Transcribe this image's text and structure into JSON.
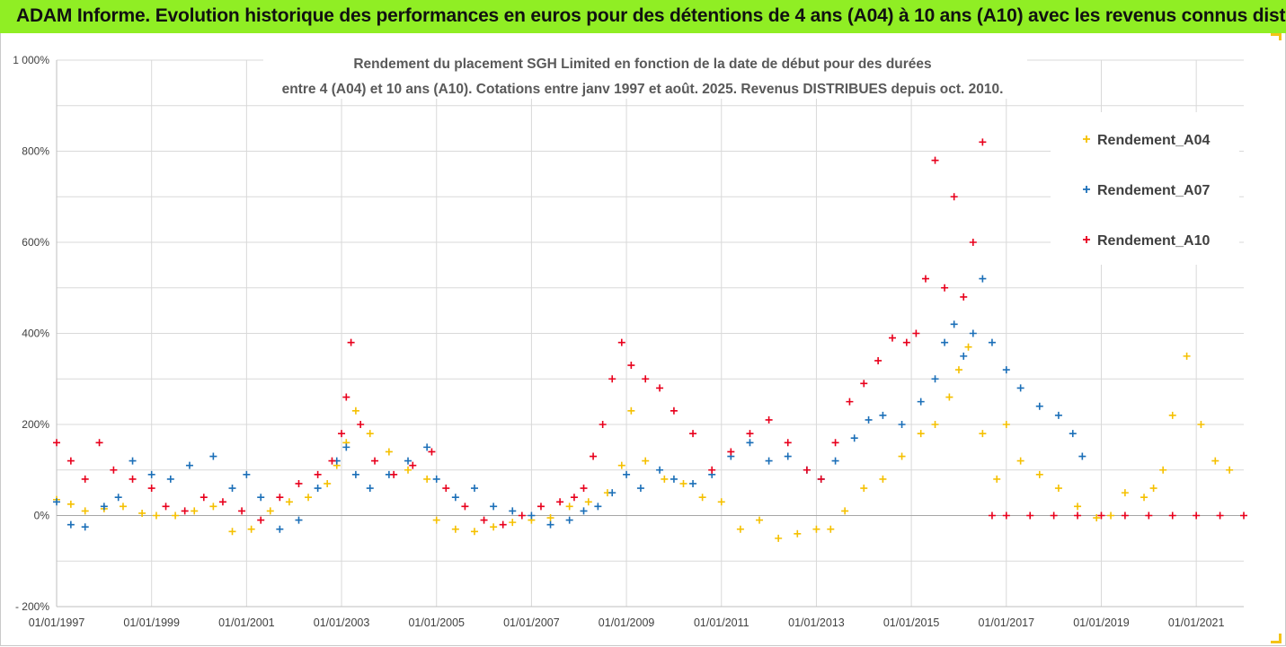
{
  "banner": {
    "title": "ADAM Informe. Evolution historique des performances en euros pour des détentions de 4 ans (A04) à 10 ans (A10) avec les revenus connus distribués"
  },
  "colors": {
    "banner": "#90ee24",
    "A04": "#f5c000",
    "A07": "#1b6fb8",
    "A10": "#e8001c",
    "grid": "#d9d9d9"
  },
  "chart_data": {
    "type": "scatter",
    "title_line1": "Rendement du placement SGH Limited en fonction de la date de début pour des durées",
    "title_line2": "entre 4 (A04) et 10 ans (A10). Cotations entre janv 1997 et août. 2025. Revenus DISTRIBUES depuis oct. 2010.",
    "y_ticks": [
      "1 000%",
      "800%",
      "600%",
      "400%",
      "200%",
      "0%",
      "- 200%"
    ],
    "y_tick_values": [
      1000,
      800,
      600,
      400,
      200,
      0,
      -200
    ],
    "x_ticks": [
      "01/01/1997",
      "01/01/1999",
      "01/01/2001",
      "01/01/2003",
      "01/01/2005",
      "01/01/2007",
      "01/01/2009",
      "01/01/2011",
      "01/01/2013",
      "01/01/2015",
      "01/01/2017",
      "01/01/2019",
      "01/01/2021"
    ],
    "x_tick_years": [
      1997,
      1999,
      2001,
      2003,
      2005,
      2007,
      2009,
      2011,
      2013,
      2015,
      2017,
      2019,
      2021
    ],
    "xlim": [
      1997.0,
      2022.0
    ],
    "ylim": [
      -200,
      1000
    ],
    "marker": "+",
    "legend_position": "right",
    "series": [
      {
        "name": "Rendement_A04",
        "color": "#f5c000",
        "x": [
          1997.0,
          1997.3,
          1997.6,
          1998.0,
          1998.4,
          1998.8,
          1999.1,
          1999.5,
          1999.9,
          2000.3,
          2000.7,
          2001.1,
          2001.5,
          2001.9,
          2002.3,
          2002.7,
          2002.9,
          2003.1,
          2003.3,
          2003.6,
          2004.0,
          2004.4,
          2004.8,
          2005.0,
          2005.4,
          2005.8,
          2006.2,
          2006.6,
          2007.0,
          2007.4,
          2007.8,
          2008.2,
          2008.6,
          2008.9,
          2009.1,
          2009.4,
          2009.8,
          2010.2,
          2010.6,
          2011.0,
          2011.4,
          2011.8,
          2012.2,
          2012.6,
          2013.0,
          2013.3,
          2013.6,
          2014.0,
          2014.4,
          2014.8,
          2015.2,
          2015.5,
          2015.8,
          2016.0,
          2016.2,
          2016.5,
          2016.8,
          2017.0,
          2017.3,
          2017.7,
          2018.1,
          2018.5,
          2018.9,
          2019.2,
          2019.5,
          2019.9,
          2020.1,
          2020.3,
          2020.5,
          2020.8,
          2021.1,
          2021.4,
          2021.7
        ],
        "y": [
          35,
          25,
          10,
          15,
          20,
          5,
          0,
          0,
          10,
          20,
          -35,
          -30,
          10,
          30,
          40,
          70,
          110,
          160,
          230,
          180,
          140,
          100,
          80,
          -10,
          -30,
          -35,
          -25,
          -15,
          -10,
          -5,
          20,
          30,
          50,
          110,
          230,
          120,
          80,
          70,
          40,
          30,
          -30,
          -10,
          -50,
          -40,
          -30,
          -30,
          10,
          60,
          80,
          130,
          180,
          200,
          260,
          320,
          370,
          180,
          80,
          200,
          120,
          90,
          60,
          20,
          -5,
          0,
          50,
          40,
          60,
          100,
          220,
          350,
          200,
          120,
          100
        ]
      },
      {
        "name": "Rendement_A07",
        "color": "#1b6fb8",
        "x": [
          1997.0,
          1997.3,
          1997.6,
          1998.0,
          1998.3,
          1998.6,
          1999.0,
          1999.4,
          1999.8,
          2000.3,
          2000.7,
          2001.0,
          2001.3,
          2001.7,
          2002.1,
          2002.5,
          2002.9,
          2003.1,
          2003.3,
          2003.6,
          2004.0,
          2004.4,
          2004.8,
          2005.0,
          2005.4,
          2005.8,
          2006.2,
          2006.6,
          2007.0,
          2007.4,
          2007.8,
          2008.1,
          2008.4,
          2008.7,
          2009.0,
          2009.3,
          2009.7,
          2010.0,
          2010.4,
          2010.8,
          2011.2,
          2011.6,
          2012.0,
          2012.4,
          2012.8,
          2013.1,
          2013.4,
          2013.8,
          2014.1,
          2014.4,
          2014.8,
          2015.2,
          2015.5,
          2015.7,
          2015.9,
          2016.1,
          2016.3,
          2016.5,
          2016.7,
          2017.0,
          2017.3,
          2017.7,
          2018.1,
          2018.4,
          2018.6
        ],
        "y": [
          30,
          -20,
          -25,
          20,
          40,
          120,
          90,
          80,
          110,
          130,
          60,
          90,
          40,
          -30,
          -10,
          60,
          120,
          150,
          90,
          60,
          90,
          120,
          150,
          80,
          40,
          60,
          20,
          10,
          0,
          -20,
          -10,
          10,
          20,
          50,
          90,
          60,
          100,
          80,
          70,
          90,
          130,
          160,
          120,
          130,
          100,
          80,
          120,
          170,
          210,
          220,
          200,
          250,
          300,
          380,
          420,
          350,
          400,
          520,
          380,
          320,
          280,
          240,
          220,
          180,
          130
        ]
      },
      {
        "name": "Rendement_A10",
        "color": "#e8001c",
        "x": [
          1997.0,
          1997.3,
          1997.6,
          1997.9,
          1998.2,
          1998.6,
          1999.0,
          1999.3,
          1999.7,
          2000.1,
          2000.5,
          2000.9,
          2001.3,
          2001.7,
          2002.1,
          2002.5,
          2002.8,
          2003.0,
          2003.1,
          2003.2,
          2003.4,
          2003.7,
          2004.1,
          2004.5,
          2004.9,
          2005.2,
          2005.6,
          2006.0,
          2006.4,
          2006.8,
          2007.2,
          2007.6,
          2007.9,
          2008.1,
          2008.3,
          2008.5,
          2008.7,
          2008.9,
          2009.1,
          2009.4,
          2009.7,
          2010.0,
          2010.4,
          2010.8,
          2011.2,
          2011.6,
          2012.0,
          2012.4,
          2012.8,
          2013.1,
          2013.4,
          2013.7,
          2014.0,
          2014.3,
          2014.6,
          2014.9,
          2015.1,
          2015.3,
          2015.5,
          2015.7,
          2015.9,
          2016.1,
          2016.3,
          2016.5,
          2016.7,
          2017.0,
          2017.5,
          2018.0,
          2018.5,
          2019.0,
          2019.5,
          2020.0,
          2020.5,
          2021.0,
          2021.5,
          2022.0
        ],
        "y": [
          160,
          120,
          80,
          160,
          100,
          80,
          60,
          20,
          10,
          40,
          30,
          10,
          -10,
          40,
          70,
          90,
          120,
          180,
          260,
          380,
          200,
          120,
          90,
          110,
          140,
          60,
          20,
          -10,
          -20,
          0,
          20,
          30,
          40,
          60,
          130,
          200,
          300,
          380,
          330,
          300,
          280,
          230,
          180,
          100,
          140,
          180,
          210,
          160,
          100,
          80,
          160,
          250,
          290,
          340,
          390,
          380,
          400,
          520,
          780,
          500,
          700,
          480,
          600,
          820,
          0,
          0,
          0,
          0,
          0,
          0,
          0,
          0,
          0,
          0,
          0,
          0
        ]
      }
    ]
  }
}
